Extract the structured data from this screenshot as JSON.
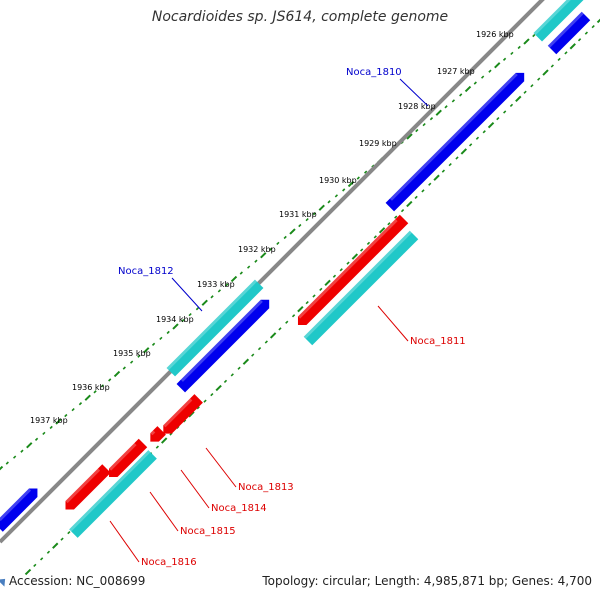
{
  "title": "Nocardioides sp. JS614, complete genome",
  "footer": {
    "accession": "Accession: NC_008699",
    "topology": "Topology: circular; Length: 4,985,871 bp; Genes: 4,700"
  },
  "colors": {
    "strand_plus": "#0000ee",
    "strand_minus": "#ee0000",
    "cds_cyan": "#20c8c8",
    "backbone": "#888888",
    "ticks": "#1a8a1a",
    "label_blue": "#0000cc",
    "label_red": "#dd0000"
  },
  "scale_labels": [
    "1926 kbp",
    "1927 kbp",
    "1928 kbp",
    "1929 kbp",
    "1930 kbp",
    "1931 kbp",
    "1932 kbp",
    "1933 kbp",
    "1934 kbp",
    "1935 kbp",
    "1936 kbp",
    "1937 kbp"
  ],
  "gene_labels": [
    {
      "name": "Noca_1810",
      "strand": "plus"
    },
    {
      "name": "Noca_1812",
      "strand": "plus"
    },
    {
      "name": "Noca_1811",
      "strand": "minus"
    },
    {
      "name": "Noca_1813",
      "strand": "minus"
    },
    {
      "name": "Noca_1814",
      "strand": "minus"
    },
    {
      "name": "Noca_1815",
      "strand": "minus"
    },
    {
      "name": "Noca_1816",
      "strand": "minus"
    }
  ]
}
